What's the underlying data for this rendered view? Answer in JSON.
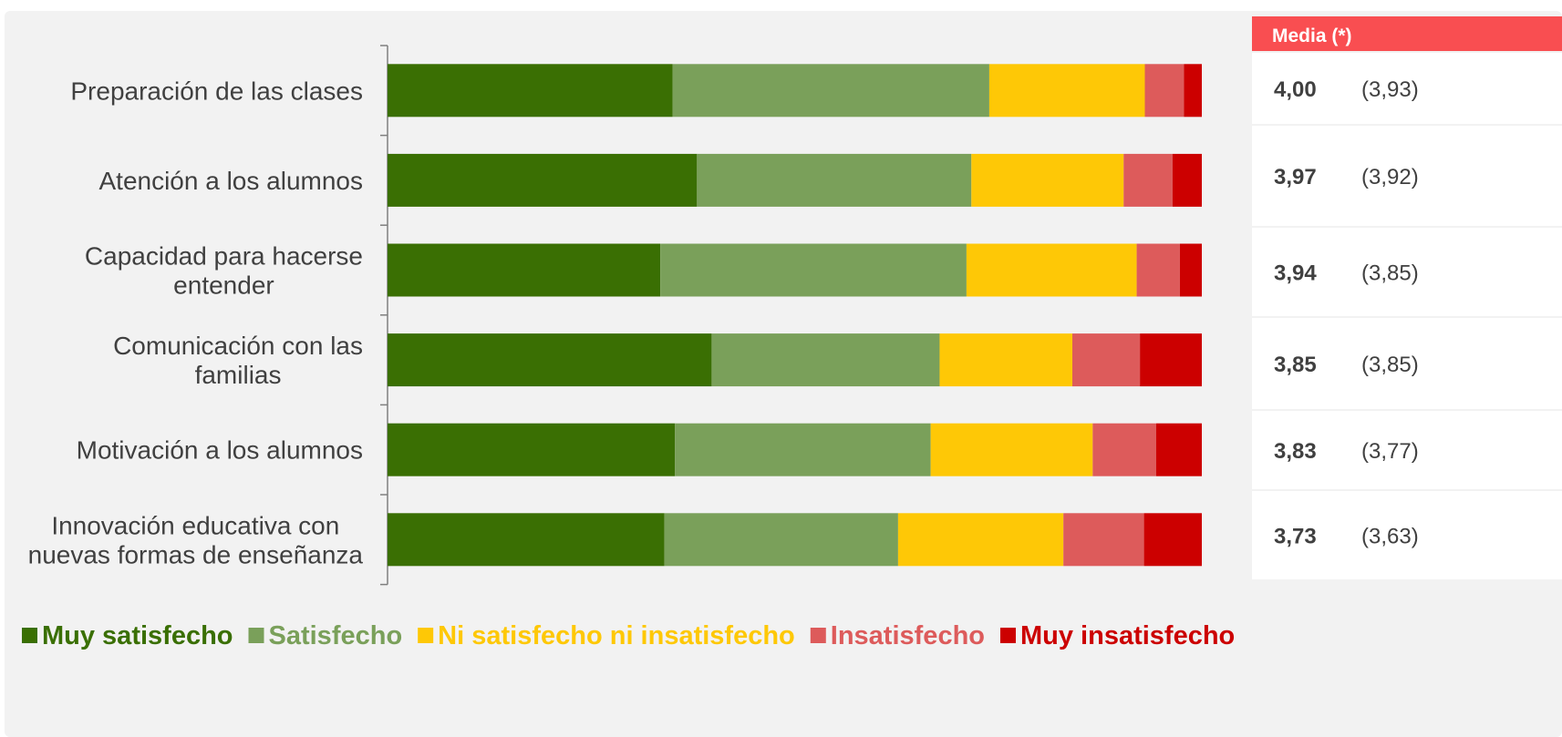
{
  "colors": {
    "muy_satisfecho": "#3a6f03",
    "satisfecho": "#7aa05a",
    "ni": "#fec806",
    "insatisfecho": "#dd5b5b",
    "muy_insatisfecho": "#cc0000",
    "header_bg": "#f94e51"
  },
  "chart_data": {
    "type": "bar",
    "orientation": "horizontal",
    "stacked": "100%",
    "xlim": [
      0,
      100
    ],
    "categories": [
      [
        "Preparación de las clases"
      ],
      [
        "Atención a los alumnos"
      ],
      [
        "Capacidad para hacerse",
        "entender"
      ],
      [
        "Comunicación con las",
        "familias"
      ],
      [
        "Motivación a los alumnos"
      ],
      [
        "Innovación educativa con",
        "nuevas formas de enseñanza"
      ]
    ],
    "series": [
      {
        "name": "Muy satisfecho",
        "color": "#3a6f03",
        "values": [
          35.0,
          38.0,
          33.5,
          39.8,
          35.3,
          34.0
        ]
      },
      {
        "name": "Satisfecho",
        "color": "#7aa05a",
        "values": [
          38.9,
          33.7,
          37.6,
          28.0,
          31.4,
          28.7
        ]
      },
      {
        "name": "Ni satisfecho ni insatisfecho",
        "color": "#fec806",
        "values": [
          19.1,
          18.7,
          20.9,
          16.3,
          19.9,
          20.3
        ]
      },
      {
        "name": "Insatisfecho",
        "color": "#dd5b5b",
        "values": [
          4.8,
          6.0,
          5.3,
          8.3,
          7.8,
          9.9
        ]
      },
      {
        "name": "Muy insatisfecho",
        "color": "#cc0000",
        "values": [
          2.2,
          3.6,
          2.7,
          7.6,
          5.6,
          7.1
        ]
      }
    ],
    "legend_position": "bottom",
    "grid": false
  },
  "mean_table": {
    "header": "Media (*)",
    "rows": [
      {
        "mean": "4,00",
        "previous": "(3,93)"
      },
      {
        "mean": "3,97",
        "previous": "(3,92)"
      },
      {
        "mean": "3,94",
        "previous": "(3,85)"
      },
      {
        "mean": "3,85",
        "previous": "(3,85)"
      },
      {
        "mean": "3,83",
        "previous": "(3,77)"
      },
      {
        "mean": "3,73",
        "previous": "(3,63)"
      }
    ]
  }
}
